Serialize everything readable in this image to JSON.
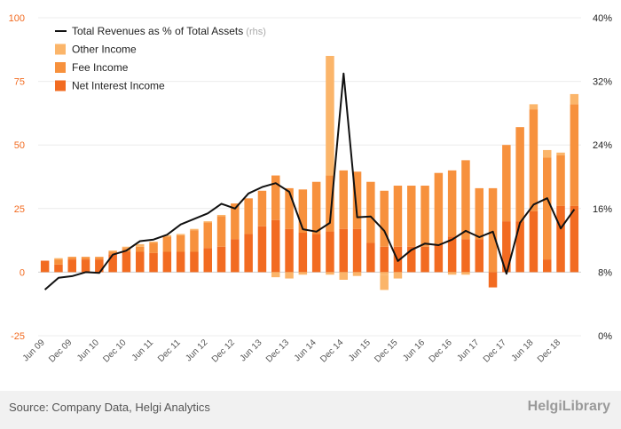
{
  "chart_data": {
    "type": "bar",
    "stacked": true,
    "categories": [
      "Jun 09",
      "",
      "Dec 09",
      "",
      "Jun 10",
      "",
      "Dec 10",
      "",
      "Jun 11",
      "",
      "Dec 11",
      "",
      "Jun 12",
      "",
      "Dec 12",
      "",
      "Jun 13",
      "",
      "Dec 13",
      "",
      "Jun 14",
      "",
      "Dec 14",
      "",
      "Jun 15",
      "",
      "Dec 15",
      "",
      "Jun 16",
      "",
      "Dec 16",
      "",
      "Jun 17",
      "",
      "Dec 17",
      "",
      "Jun 18",
      "",
      "Dec 18",
      ""
    ],
    "series": [
      {
        "name": "Net Interest Income",
        "axis": "left",
        "color": "#f26b21",
        "values": [
          4.5,
          3,
          5,
          5,
          5,
          7,
          8,
          8,
          7.5,
          8,
          8,
          8,
          9.5,
          10,
          13,
          15,
          18,
          20.5,
          17,
          15.5,
          15,
          16,
          17,
          17,
          11.5,
          10,
          10,
          10,
          10,
          11,
          14,
          13,
          13,
          -6,
          20,
          20,
          24,
          5,
          26,
          26
        ]
      },
      {
        "name": "Fee Income",
        "axis": "left",
        "color": "#f7913d",
        "values": [
          0,
          2,
          1,
          1,
          1,
          1,
          1.5,
          2,
          4,
          6,
          6.5,
          8.5,
          10,
          12,
          14,
          14,
          14,
          17.5,
          16,
          17,
          20.5,
          22,
          23,
          22.5,
          24,
          22,
          24,
          24,
          24,
          28,
          26,
          31,
          20,
          33,
          30,
          37,
          40,
          40,
          20,
          40
        ]
      },
      {
        "name": "Other Income",
        "axis": "left",
        "color": "#fbb56a",
        "values": [
          0,
          0.5,
          0,
          0,
          0,
          0.5,
          0.5,
          1,
          0.5,
          0.5,
          0.5,
          0.5,
          0.5,
          0.5,
          0,
          0,
          0,
          0,
          0,
          0,
          0,
          47,
          0,
          0,
          0,
          -1,
          0,
          0,
          0,
          0,
          0,
          0,
          0,
          0,
          0,
          0,
          2,
          3,
          1,
          4
        ],
        "neg_values": [
          0,
          0,
          0,
          0,
          0,
          0,
          0,
          0,
          0,
          0,
          0,
          0,
          0,
          0,
          0,
          0,
          0,
          -2,
          -2.5,
          -1,
          0,
          -1,
          -3,
          -1.5,
          0,
          -6,
          -2.5,
          0,
          0,
          0,
          -1,
          -1,
          0,
          0,
          0,
          0,
          0,
          0,
          0,
          0
        ]
      },
      {
        "name": "Total Revenues as % of Total Assets",
        "axis": "right",
        "type": "line",
        "color": "#111111",
        "values": [
          5.8,
          7.3,
          7.5,
          8,
          7.9,
          10.2,
          10.7,
          11.9,
          12.1,
          12.7,
          14,
          14.7,
          15.4,
          16.6,
          16,
          17.9,
          18.7,
          19.2,
          18.1,
          13.4,
          13.1,
          14.2,
          33,
          14.9,
          15,
          13.2,
          9.4,
          10.8,
          11.6,
          11.4,
          12.1,
          13.2,
          12.4,
          13.1,
          7.8,
          14.2,
          16.5,
          17.3,
          13.5,
          15.9
        ]
      }
    ],
    "y_left": {
      "ylim": [
        -25,
        100
      ],
      "ticks": [
        -25,
        0,
        25,
        50,
        75,
        100
      ],
      "color": "#f26b21"
    },
    "y_right": {
      "ylim": [
        0,
        40
      ],
      "ticks": [
        "0%",
        "8%",
        "16%",
        "24%",
        "32%",
        "40%"
      ]
    },
    "legend": {
      "placement": "top-left",
      "entries": [
        "Total Revenues as % of Total Assets",
        "Other Income",
        "Fee Income",
        "Net Interest Income"
      ],
      "rhs_note": "(rhs)"
    },
    "grid": true
  },
  "footer": {
    "source": "Source: Company Data, Helgi Analytics",
    "brand": "HelgiLibrary"
  }
}
